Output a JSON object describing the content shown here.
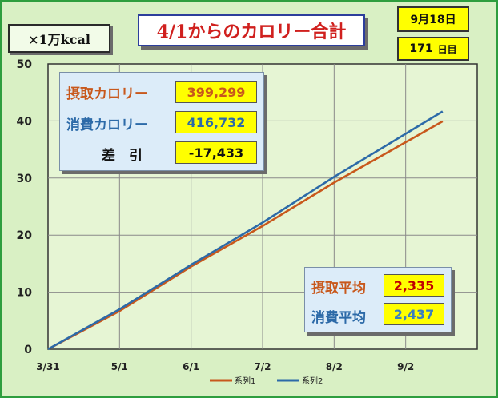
{
  "header": {
    "title": "4/1からのカロリー合計",
    "unit": "×1万kcal",
    "date": "9月18日",
    "days_value": "171",
    "days_unit": "日目"
  },
  "summary": {
    "intake_label": "摂取カロリー",
    "intake_value": "399,299",
    "burn_label": "消費カロリー",
    "burn_value": "416,732",
    "diff_label": "差　引",
    "diff_value": "-17,433"
  },
  "averages": {
    "intake_avg_label": "摂取平均",
    "intake_avg_value": "2,335",
    "burn_avg_label": "消費平均",
    "burn_avg_value": "2,437"
  },
  "colors": {
    "series1": "#c8581c",
    "series2": "#2c6aa8",
    "intake_text": "#c8581c",
    "burn_text": "#2c6aa8",
    "intake_avg_value_text": "#c00000",
    "burn_avg_value_text": "#3a7fc1"
  },
  "chart_data": {
    "type": "line",
    "x_tick_labels": [
      "3/31",
      "5/1",
      "6/1",
      "7/2",
      "8/2",
      "9/2"
    ],
    "x_tick_days": [
      0,
      31,
      62,
      93,
      124,
      155
    ],
    "x_range": [
      0,
      186
    ],
    "ylim": [
      0,
      50
    ],
    "y_ticks": [
      0,
      10,
      20,
      30,
      40,
      50
    ],
    "grid": true,
    "legend_position": "bottom",
    "series": [
      {
        "name": "系列1",
        "points": [
          [
            0,
            0
          ],
          [
            31,
            6.7
          ],
          [
            62,
            14.5
          ],
          [
            93,
            21.6
          ],
          [
            124,
            29.2
          ],
          [
            171,
            39.93
          ]
        ]
      },
      {
        "name": "系列2",
        "points": [
          [
            0,
            0
          ],
          [
            31,
            7.0
          ],
          [
            62,
            14.8
          ],
          [
            93,
            22.2
          ],
          [
            124,
            30.2
          ],
          [
            171,
            41.67
          ]
        ]
      }
    ]
  }
}
